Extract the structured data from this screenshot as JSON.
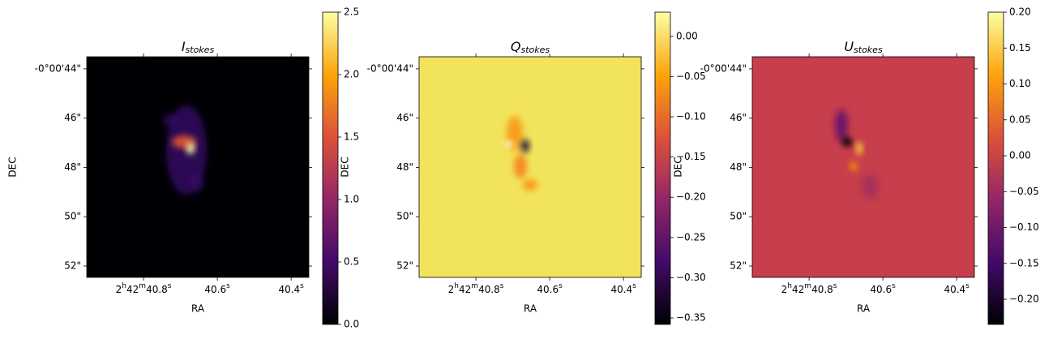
{
  "chart_data": [
    {
      "type": "heatmap",
      "title": "I",
      "title_subscript": "stokes",
      "xlabel": "RA",
      "ylabel": "DEC",
      "xlim": [
        40.954,
        40.352
      ],
      "xticks": [
        {
          "value": 40.8,
          "label": "2h42m40.8s"
        },
        {
          "value": 40.6,
          "label": "40.6s"
        },
        {
          "value": 40.4,
          "label": "40.4s"
        }
      ],
      "ylim": [
        -52.46,
        -43.51
      ],
      "yticks": [
        {
          "value": -44,
          "label": "-0°00'44\""
        },
        {
          "value": -46,
          "label": "46\""
        },
        {
          "value": -48,
          "label": "48\""
        },
        {
          "value": -50,
          "label": "50\""
        },
        {
          "value": -52,
          "label": "52\""
        }
      ],
      "colorbar_lim": [
        0,
        2.5
      ],
      "colorbar_ticks": [
        {
          "value": 0,
          "label": "0.0"
        },
        0.5,
        {
          "value": 1,
          "label": "1.0"
        },
        1.5,
        {
          "value": 2,
          "label": "2.0"
        },
        2.5
      ],
      "colormap": [
        "#000004",
        "#420a68",
        "#932667",
        "#dd513a",
        "#fca50a",
        "#fcffa4"
      ]
    },
    {
      "type": "heatmap",
      "title": "Q",
      "title_subscript": "stokes",
      "xlabel": "RA",
      "ylabel": "DEC",
      "xlim": [
        40.954,
        40.352
      ],
      "xticks": [
        {
          "value": 40.8,
          "label": "2h42m40.8s"
        },
        {
          "value": 40.6,
          "label": "40.6s"
        },
        {
          "value": 40.4,
          "label": "40.4s"
        }
      ],
      "ylim": [
        -52.46,
        -43.51
      ],
      "yticks": [
        {
          "value": -44,
          "label": "-0°00'44\""
        },
        {
          "value": -46,
          "label": "46\""
        },
        {
          "value": -48,
          "label": "48\""
        },
        {
          "value": -50,
          "label": "50\""
        },
        {
          "value": -52,
          "label": "52\""
        }
      ],
      "colorbar_lim": [
        -0.358,
        0.03
      ],
      "colorbar_ticks": [
        {
          "value": 0,
          "label": "0.00"
        },
        {
          "value": -0.05,
          "label": "−0.05"
        },
        {
          "value": -0.1,
          "label": "−0.10"
        },
        {
          "value": -0.15,
          "label": "−0.15"
        },
        {
          "value": -0.2,
          "label": "−0.20"
        },
        {
          "value": -0.25,
          "label": "−0.25"
        },
        {
          "value": -0.3,
          "label": "−0.30"
        },
        {
          "value": -0.35,
          "label": "−0.35"
        }
      ],
      "colormap": [
        "#000004",
        "#420a68",
        "#932667",
        "#dd513a",
        "#fca50a",
        "#fcffa4"
      ]
    },
    {
      "type": "heatmap",
      "title": "U",
      "title_subscript": "stokes",
      "xlabel": "RA",
      "ylabel": "DEC",
      "xlim": [
        40.954,
        40.352
      ],
      "xticks": [
        {
          "value": 40.8,
          "label": "2h42m40.8s"
        },
        {
          "value": 40.6,
          "label": "40.6s"
        },
        {
          "value": 40.4,
          "label": "40.4s"
        }
      ],
      "ylim": [
        -52.46,
        -43.51
      ],
      "yticks": [
        {
          "value": -44,
          "label": "-0°00'44\""
        },
        {
          "value": -46,
          "label": "46\""
        },
        {
          "value": -48,
          "label": "48\""
        },
        {
          "value": -50,
          "label": "50\""
        },
        {
          "value": -52,
          "label": "52\""
        }
      ],
      "colorbar_lim": [
        -0.235,
        0.2
      ],
      "colorbar_ticks": [
        {
          "value": 0.2,
          "label": "0.20"
        },
        0.15,
        {
          "value": 0.1,
          "label": "0.10"
        },
        0.05,
        {
          "value": 0,
          "label": "0.00"
        },
        {
          "value": -0.05,
          "label": "−0.05"
        },
        {
          "value": -0.1,
          "label": "−0.10"
        },
        {
          "value": -0.15,
          "label": "−0.15"
        },
        {
          "value": -0.2,
          "label": "−0.20"
        }
      ],
      "colormap": [
        "#000004",
        "#420a68",
        "#932667",
        "#dd513a",
        "#fca50a",
        "#fcffa4"
      ]
    }
  ]
}
